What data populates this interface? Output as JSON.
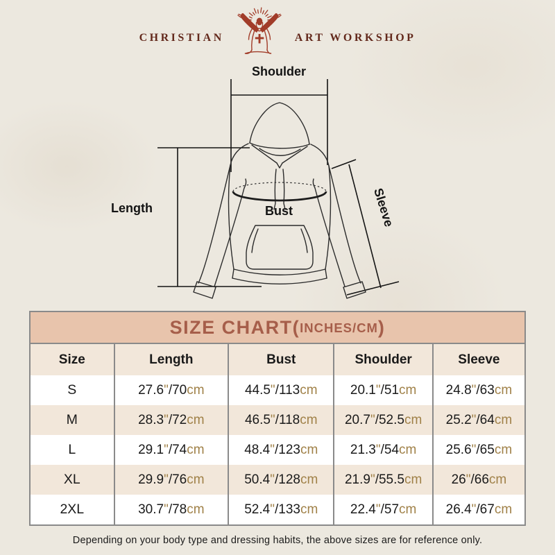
{
  "logo": {
    "left": "CHRISTIAN",
    "right": "ART WORKSHOP",
    "icon": "jesus-rays-icon"
  },
  "diagram": {
    "shoulder_label": "Shoulder",
    "length_label": "Length",
    "bust_label": "Bust",
    "sleeve_label": "Sleeve"
  },
  "size_chart": {
    "title_main": "SIZE CHART",
    "title_open": "(",
    "title_units": "INCHES/CM",
    "title_close": ")",
    "unit_inch_mark": "\"",
    "separator": "/",
    "unit_cm": "cm",
    "columns": [
      "Size",
      "Length",
      "Bust",
      "Shoulder",
      "Sleeve"
    ],
    "rows": [
      {
        "size": "S",
        "length": {
          "in": "27.6",
          "cm": "70"
        },
        "bust": {
          "in": "44.5",
          "cm": "113"
        },
        "shoulder": {
          "in": "20.1",
          "cm": "51"
        },
        "sleeve": {
          "in": "24.8",
          "cm": "63"
        }
      },
      {
        "size": "M",
        "length": {
          "in": "28.3",
          "cm": "72"
        },
        "bust": {
          "in": "46.5",
          "cm": "118"
        },
        "shoulder": {
          "in": "20.7",
          "cm": "52.5"
        },
        "sleeve": {
          "in": "25.2",
          "cm": "64"
        }
      },
      {
        "size": "L",
        "length": {
          "in": "29.1",
          "cm": "74"
        },
        "bust": {
          "in": "48.4",
          "cm": "123"
        },
        "shoulder": {
          "in": "21.3",
          "cm": "54"
        },
        "sleeve": {
          "in": "25.6",
          "cm": "65"
        }
      },
      {
        "size": "XL",
        "length": {
          "in": "29.9",
          "cm": "76"
        },
        "bust": {
          "in": "50.4",
          "cm": "128"
        },
        "shoulder": {
          "in": "21.9",
          "cm": "55.5"
        },
        "sleeve": {
          "in": "26",
          "cm": "66"
        }
      },
      {
        "size": "2XL",
        "length": {
          "in": "30.7",
          "cm": "78"
        },
        "bust": {
          "in": "52.4",
          "cm": "133"
        },
        "shoulder": {
          "in": "22.4",
          "cm": "57"
        },
        "sleeve": {
          "in": "26.4",
          "cm": "67"
        }
      }
    ]
  },
  "footer": {
    "note": "Depending on your body type and dressing habits, the above sizes are for reference only."
  },
  "colors": {
    "page_bg": "#ece8df",
    "logo_red": "#a13c29",
    "logo_text": "#63291c",
    "title_bg": "#e8c4ac",
    "title_text": "#a65e4a",
    "row_alt": "#f2e7da",
    "border": "#8a8a8a",
    "unit_tan": "#a08148"
  }
}
